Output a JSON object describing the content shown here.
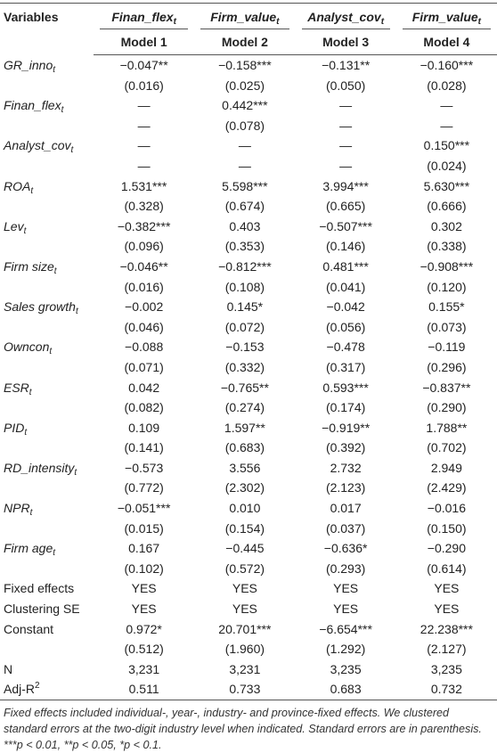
{
  "table": {
    "header": {
      "variables": "Variables",
      "dependents": [
        {
          "text": "Finan_flex",
          "sub": "t"
        },
        {
          "text": "Firm_value",
          "sub": "t"
        },
        {
          "text": "Analyst_cov",
          "sub": "t"
        },
        {
          "text": "Firm_value",
          "sub": "t"
        }
      ],
      "models": [
        "Model 1",
        "Model 2",
        "Model 3",
        "Model 4"
      ]
    },
    "rows": [
      {
        "label": {
          "text": "GR_inno",
          "sub": "t"
        },
        "italic": true,
        "cells": [
          "−0.047**",
          "−0.158***",
          "−0.131**",
          "−0.160***"
        ]
      },
      {
        "cells": [
          "(0.016)",
          "(0.025)",
          "(0.050)",
          "(0.028)"
        ]
      },
      {
        "label": {
          "text": "Finan_flex",
          "sub": "t"
        },
        "italic": true,
        "cells": [
          "—",
          "0.442***",
          "—",
          "—"
        ]
      },
      {
        "cells": [
          "—",
          "(0.078)",
          "—",
          "—"
        ]
      },
      {
        "label": {
          "text": "Analyst_cov",
          "sub": "t"
        },
        "italic": true,
        "cells": [
          "—",
          "—",
          "—",
          "0.150***"
        ]
      },
      {
        "cells": [
          "—",
          "—",
          "—",
          "(0.024)"
        ]
      },
      {
        "label": {
          "text": "ROA",
          "sub": "t"
        },
        "italic": true,
        "cells": [
          "1.531***",
          "5.598***",
          "3.994***",
          "5.630***"
        ]
      },
      {
        "cells": [
          "(0.328)",
          "(0.674)",
          "(0.665)",
          "(0.666)"
        ]
      },
      {
        "label": {
          "text": "Lev",
          "sub": "t"
        },
        "italic": true,
        "cells": [
          "−0.382***",
          "0.403",
          "−0.507***",
          "0.302"
        ]
      },
      {
        "cells": [
          "(0.096)",
          "(0.353)",
          "(0.146)",
          "(0.338)"
        ]
      },
      {
        "label": {
          "text": "Firm size",
          "sub": "t"
        },
        "italic": true,
        "cells": [
          "−0.046**",
          "−0.812***",
          "0.481***",
          "−0.908***"
        ]
      },
      {
        "cells": [
          "(0.016)",
          "(0.108)",
          "(0.041)",
          "(0.120)"
        ]
      },
      {
        "label": {
          "text": "Sales growth",
          "sub": "t"
        },
        "italic": true,
        "cells": [
          "−0.002",
          "0.145*",
          "−0.042",
          "0.155*"
        ]
      },
      {
        "cells": [
          "(0.046)",
          "(0.072)",
          "(0.056)",
          "(0.073)"
        ]
      },
      {
        "label": {
          "text": "Owncon",
          "sub": "t"
        },
        "italic": true,
        "cells": [
          "−0.088",
          "−0.153",
          "−0.478",
          "−0.119"
        ]
      },
      {
        "cells": [
          "(0.071)",
          "(0.332)",
          "(0.317)",
          "(0.296)"
        ]
      },
      {
        "label": {
          "text": "ESR",
          "sub": "t"
        },
        "italic": true,
        "cells": [
          "0.042",
          "−0.765**",
          "0.593***",
          "−0.837**"
        ]
      },
      {
        "cells": [
          "(0.082)",
          "(0.274)",
          "(0.174)",
          "(0.290)"
        ]
      },
      {
        "label": {
          "text": "PID",
          "sub": "t"
        },
        "italic": true,
        "cells": [
          "0.109",
          "1.597**",
          "−0.919**",
          "1.788**"
        ]
      },
      {
        "cells": [
          "(0.141)",
          "(0.683)",
          "(0.392)",
          "(0.702)"
        ]
      },
      {
        "label": {
          "text": "RD_intensity",
          "sub": "t"
        },
        "italic": true,
        "cells": [
          "−0.573",
          "3.556",
          "2.732",
          "2.949"
        ]
      },
      {
        "cells": [
          "(0.772)",
          "(2.302)",
          "(2.123)",
          "(2.429)"
        ]
      },
      {
        "label": {
          "text": "NPR",
          "sub": "t"
        },
        "italic": true,
        "cells": [
          "−0.051***",
          "0.010",
          "0.017",
          "−0.016"
        ]
      },
      {
        "cells": [
          "(0.015)",
          "(0.154)",
          "(0.037)",
          "(0.150)"
        ]
      },
      {
        "label": {
          "text": "Firm age",
          "sub": "t"
        },
        "italic": true,
        "cells": [
          "0.167",
          "−0.445",
          "−0.636*",
          "−0.290"
        ]
      },
      {
        "cells": [
          "(0.102)",
          "(0.572)",
          "(0.293)",
          "(0.614)"
        ]
      },
      {
        "label": {
          "text": "Fixed effects"
        },
        "cells": [
          "YES",
          "YES",
          "YES",
          "YES"
        ]
      },
      {
        "label": {
          "text": "Clustering SE"
        },
        "cells": [
          "YES",
          "YES",
          "YES",
          "YES"
        ]
      },
      {
        "label": {
          "text": "Constant"
        },
        "cells": [
          "0.972*",
          "20.701***",
          "−6.654***",
          "22.238***"
        ]
      },
      {
        "cells": [
          "(0.512)",
          "(1.960)",
          "(1.292)",
          "(2.127)"
        ]
      },
      {
        "label": {
          "text": "N"
        },
        "cells": [
          "3,231",
          "3,231",
          "3,235",
          "3,235"
        ]
      },
      {
        "label": {
          "text": "Adj-R",
          "sup": "2"
        },
        "cells": [
          "0.511",
          "0.733",
          "0.683",
          "0.732"
        ]
      }
    ]
  },
  "note": "Fixed effects included individual-, year-, industry- and province-fixed effects. We clustered standard errors at the two-digit industry level when indicated. Standard errors are in parenthesis. ***p < 0.01, **p < 0.05, *p < 0.1."
}
